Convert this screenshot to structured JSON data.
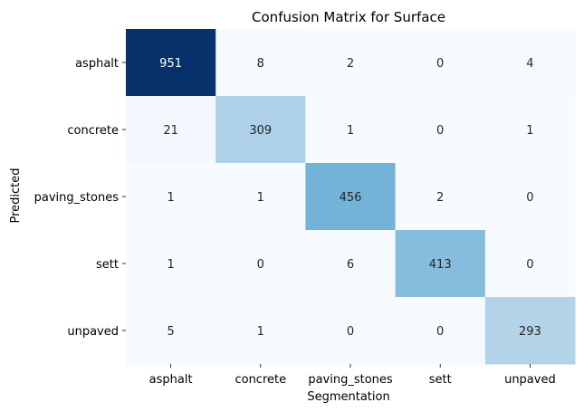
{
  "chart_data": {
    "type": "heatmap",
    "title": "Confusion Matrix for Surface",
    "xlabel": "Segmentation",
    "ylabel": "Predicted",
    "x_categories": [
      "asphalt",
      "concrete",
      "paving_stones",
      "sett",
      "unpaved"
    ],
    "y_categories": [
      "asphalt",
      "concrete",
      "paving_stones",
      "sett",
      "unpaved"
    ],
    "values": [
      [
        951,
        8,
        2,
        0,
        4
      ],
      [
        21,
        309,
        1,
        0,
        1
      ],
      [
        1,
        1,
        456,
        2,
        0
      ],
      [
        1,
        0,
        6,
        413,
        0
      ],
      [
        5,
        1,
        0,
        0,
        293
      ]
    ],
    "colormap": "Blues",
    "vmin": 0,
    "vmax": 951,
    "colorbar": false,
    "annotations": true,
    "grid": false
  }
}
